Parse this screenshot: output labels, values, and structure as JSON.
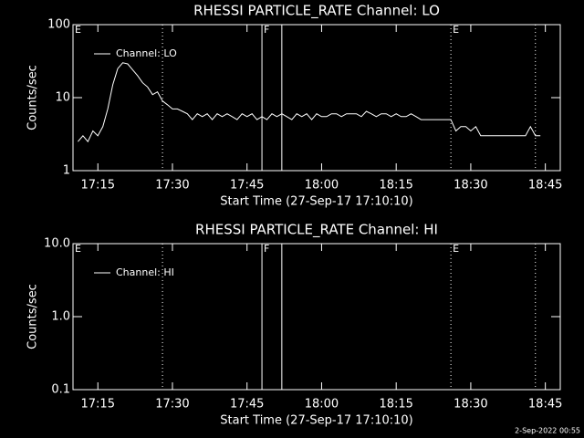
{
  "chart_data": [
    {
      "type": "line",
      "title": "RHESSI PARTICLE_RATE Channel: LO",
      "xlabel": "Start Time (27-Sep-17 17:10:10)",
      "ylabel": "Counts/sec",
      "log_y": true,
      "legend": "upper left",
      "xlim": [
        "17:10",
        "18:48"
      ],
      "xticks": [
        "17:15",
        "17:30",
        "17:45",
        "18:00",
        "18:15",
        "18:30",
        "18:45"
      ],
      "ylim": [
        1,
        100
      ],
      "yticks": [
        1,
        10,
        100
      ],
      "vlines": [
        {
          "x": "17:28",
          "style": "dotted"
        },
        {
          "x": "17:48",
          "style": "solid"
        },
        {
          "x": "17:52",
          "style": "solid"
        },
        {
          "x": "18:26",
          "style": "dotted"
        },
        {
          "x": "18:43",
          "style": "dotted"
        }
      ],
      "annotations": [
        {
          "x": "17:10",
          "text": "E"
        },
        {
          "x": "17:48",
          "text": "F"
        },
        {
          "x": "18:26",
          "text": "E"
        }
      ],
      "x": [
        "17:11",
        "17:12",
        "17:13",
        "17:14",
        "17:15",
        "17:16",
        "17:17",
        "17:18",
        "17:19",
        "17:20",
        "17:21",
        "17:22",
        "17:23",
        "17:24",
        "17:25",
        "17:26",
        "17:27",
        "17:28",
        "17:29",
        "17:30",
        "17:31",
        "17:32",
        "17:33",
        "17:34",
        "17:35",
        "17:36",
        "17:37",
        "17:38",
        "17:39",
        "17:40",
        "17:41",
        "17:42",
        "17:43",
        "17:44",
        "17:45",
        "17:46",
        "17:47",
        "17:48",
        "17:49",
        "17:50",
        "17:51",
        "17:52",
        "17:53",
        "17:54",
        "17:55",
        "17:56",
        "17:57",
        "17:58",
        "17:59",
        "18:00",
        "18:01",
        "18:02",
        "18:03",
        "18:04",
        "18:05",
        "18:06",
        "18:07",
        "18:08",
        "18:09",
        "18:10",
        "18:11",
        "18:12",
        "18:13",
        "18:14",
        "18:15",
        "18:16",
        "18:17",
        "18:18",
        "18:19",
        "18:20",
        "18:21",
        "18:22",
        "18:23",
        "18:24",
        "18:25",
        "18:26",
        "18:27",
        "18:28",
        "18:29",
        "18:30",
        "18:31",
        "18:32",
        "18:33",
        "18:34",
        "18:35",
        "18:36",
        "18:37",
        "18:38",
        "18:39",
        "18:40",
        "18:41",
        "18:42",
        "18:43",
        "18:44"
      ],
      "series": [
        {
          "name": "Channel: LO",
          "color": "#ffffff",
          "values": [
            2.5,
            3,
            2.5,
            3.5,
            3,
            4,
            7,
            15,
            25,
            30,
            29,
            24,
            20,
            16,
            14,
            11,
            12,
            9,
            8,
            7,
            7,
            6.5,
            6,
            5,
            6,
            5.5,
            6,
            5,
            6,
            5.5,
            6,
            5.5,
            5,
            6,
            5.5,
            6,
            5,
            5.5,
            5,
            6,
            5.5,
            6,
            5.5,
            5,
            6,
            5.5,
            6,
            5,
            6,
            5.5,
            5.5,
            6,
            6,
            5.5,
            6,
            6,
            6,
            5.5,
            6.5,
            6,
            5.5,
            6,
            6,
            5.5,
            6,
            5.5,
            5.5,
            6,
            5.5,
            5,
            5,
            5,
            5,
            5,
            5,
            5,
            3.5,
            4,
            4,
            3.5,
            4,
            3,
            3,
            3,
            3,
            3,
            3,
            3,
            3,
            3,
            3,
            4,
            3,
            3
          ]
        }
      ]
    },
    {
      "type": "line",
      "title": "RHESSI PARTICLE_RATE Channel: HI",
      "xlabel": "Start Time (27-Sep-17 17:10:10)",
      "ylabel": "Counts/sec",
      "log_y": true,
      "legend": "upper left",
      "xlim": [
        "17:10",
        "18:48"
      ],
      "xticks": [
        "17:15",
        "17:30",
        "17:45",
        "18:00",
        "18:15",
        "18:30",
        "18:45"
      ],
      "ylim": [
        0.1,
        10
      ],
      "yticks": [
        0.1,
        {
          "value": 1,
          "label": "1.0"
        },
        {
          "value": 10,
          "label": "10.0"
        }
      ],
      "vlines": [
        {
          "x": "17:28",
          "style": "dotted"
        },
        {
          "x": "17:48",
          "style": "solid"
        },
        {
          "x": "17:52",
          "style": "solid"
        },
        {
          "x": "18:26",
          "style": "dotted"
        },
        {
          "x": "18:43",
          "style": "dotted"
        }
      ],
      "annotations": [
        {
          "x": "17:10",
          "text": "E"
        },
        {
          "x": "17:48",
          "text": "F"
        },
        {
          "x": "18:26",
          "text": "E"
        }
      ],
      "x": [],
      "series": [
        {
          "name": "Channel: HI",
          "color": "#ffffff",
          "values": []
        }
      ]
    }
  ],
  "footer": "2-Sep-2022 00:55"
}
